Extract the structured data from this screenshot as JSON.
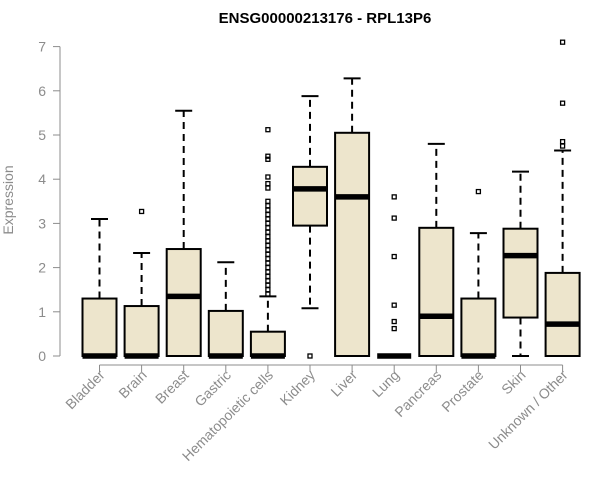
{
  "chart_data": {
    "type": "boxplot",
    "title": "ENSG00000213176 - RPL13P6",
    "xlabel": "",
    "ylabel": "Expression",
    "ylim": [
      0,
      7
    ],
    "yticks": [
      0,
      1,
      2,
      3,
      4,
      5,
      6,
      7
    ],
    "grid": false,
    "box_fill": "#ede5cc",
    "box_stroke": "#000000",
    "axis_color": "#8c8c8c",
    "categories": [
      "Bladder",
      "Brain",
      "Breast",
      "Gastric",
      "Hematopoietic cells",
      "Kidney",
      "Liver",
      "Lung",
      "Pancreas",
      "Prostate",
      "Skin",
      "Unknown / Other"
    ],
    "boxes": [
      {
        "category": "Bladder",
        "q1": 0,
        "median": 0,
        "q3": 1.3,
        "whisker_low": 0,
        "whisker_high": 3.1,
        "outliers": []
      },
      {
        "category": "Brain",
        "q1": 0,
        "median": 0,
        "q3": 1.13,
        "whisker_low": 0,
        "whisker_high": 2.33,
        "outliers": [
          3.27
        ]
      },
      {
        "category": "Breast",
        "q1": 0,
        "median": 1.35,
        "q3": 2.42,
        "whisker_low": 0,
        "whisker_high": 5.55,
        "outliers": []
      },
      {
        "category": "Gastric",
        "q1": 0,
        "median": 0,
        "q3": 1.02,
        "whisker_low": 0,
        "whisker_high": 2.12,
        "outliers": []
      },
      {
        "category": "Hematopoietic cells",
        "q1": 0,
        "median": 0,
        "q3": 0.55,
        "whisker_low": 0,
        "whisker_high": 1.35,
        "outliers": [
          1.4,
          1.5,
          1.6,
          1.7,
          1.8,
          1.9,
          2.0,
          2.1,
          2.2,
          2.3,
          2.4,
          2.5,
          2.6,
          2.7,
          2.8,
          2.9,
          3.0,
          3.1,
          3.2,
          3.3,
          3.4,
          3.5,
          3.8,
          3.9,
          4.05,
          4.45,
          4.52,
          5.12
        ]
      },
      {
        "category": "Kidney",
        "q1": 2.95,
        "median": 3.78,
        "q3": 4.28,
        "whisker_low": 1.08,
        "whisker_high": 5.88,
        "outliers": [
          0.0
        ]
      },
      {
        "category": "Liver",
        "q1": 0,
        "median": 3.6,
        "q3": 5.05,
        "whisker_low": 0,
        "whisker_high": 6.28,
        "outliers": []
      },
      {
        "category": "Lung",
        "q1": 0,
        "median": 0,
        "q3": 0,
        "whisker_low": 0,
        "whisker_high": 0,
        "outliers": [
          0.62,
          0.78,
          1.15,
          2.25,
          3.12,
          3.6
        ]
      },
      {
        "category": "Pancreas",
        "q1": 0,
        "median": 0.9,
        "q3": 2.9,
        "whisker_low": 0,
        "whisker_high": 4.8,
        "outliers": []
      },
      {
        "category": "Prostate",
        "q1": 0,
        "median": 0,
        "q3": 1.3,
        "whisker_low": 0,
        "whisker_high": 2.78,
        "outliers": [
          3.72
        ]
      },
      {
        "category": "Skin",
        "q1": 0.87,
        "median": 2.27,
        "q3": 2.88,
        "whisker_low": 0,
        "whisker_high": 4.17,
        "outliers": []
      },
      {
        "category": "Unknown / Other",
        "q1": 0,
        "median": 0.72,
        "q3": 1.88,
        "whisker_low": 0,
        "whisker_high": 4.65,
        "outliers": [
          4.75,
          4.85,
          5.72,
          7.1
        ]
      }
    ]
  }
}
